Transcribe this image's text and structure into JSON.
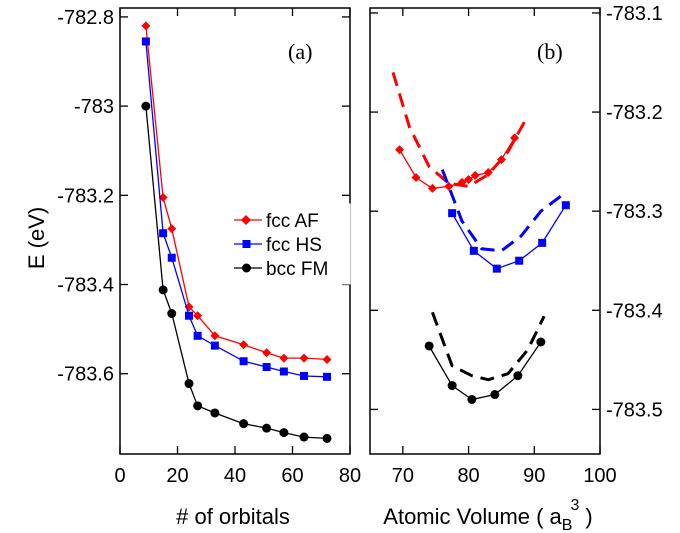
{
  "chart_data": [
    {
      "type": "line",
      "panel_label": "(a)",
      "xlabel": "# of orbitals",
      "ylabel": "E (eV)",
      "xlim": [
        0,
        80
      ],
      "ylim": [
        -783.78,
        -782.78
      ],
      "xticks": [
        0,
        20,
        40,
        60,
        80
      ],
      "yticks": [
        -782.8,
        -783,
        -783.2,
        -783.4,
        -783.6
      ],
      "ytick_labels": [
        "-782.8",
        "-783",
        "-783.2",
        "-783.4",
        "-783.6"
      ],
      "legend_position": "center-right",
      "series": [
        {
          "name": "fcc AF",
          "color": "#ff0000",
          "marker": "diamond",
          "x": [
            9,
            15,
            18,
            24,
            27,
            33,
            43,
            51,
            57,
            64,
            72
          ],
          "y": [
            -782.82,
            -783.205,
            -783.275,
            -783.45,
            -783.47,
            -783.515,
            -783.535,
            -783.553,
            -783.565,
            -783.565,
            -783.568
          ]
        },
        {
          "name": "fcc HS",
          "color": "#0000ff",
          "marker": "square",
          "x": [
            9,
            15,
            18,
            24,
            27,
            33,
            43,
            51,
            57,
            64,
            72
          ],
          "y": [
            -782.855,
            -783.285,
            -783.34,
            -783.47,
            -783.515,
            -783.537,
            -783.572,
            -783.585,
            -783.595,
            -783.605,
            -783.607
          ]
        },
        {
          "name": "bcc FM",
          "color": "#000000",
          "marker": "circle",
          "x": [
            9,
            15,
            18,
            24,
            27,
            33,
            43,
            51,
            57,
            64,
            72
          ],
          "y": [
            -783.0,
            -783.412,
            -783.465,
            -783.622,
            -783.672,
            -783.688,
            -783.712,
            -783.722,
            -783.732,
            -783.742,
            -783.745
          ]
        }
      ]
    },
    {
      "type": "line",
      "panel_label": "(b)",
      "xlabel": "Atomic Volume ( a",
      "xlabel_sub": "B",
      "xlabel_sup": "3",
      "xlabel_end": ")",
      "xlim": [
        65,
        100
      ],
      "ylim": [
        -783.545,
        -783.095
      ],
      "xticks": [
        70,
        80,
        90,
        100
      ],
      "yticks": [
        -783.1,
        -783.2,
        -783.3,
        -783.4,
        -783.5
      ],
      "ytick_labels": [
        "-783.1",
        "-783.2",
        "-783.3",
        "-783.4",
        "-783.5"
      ],
      "yaxis_side": "right",
      "series": [
        {
          "color": "#ff0000",
          "style": "solid",
          "marker": "diamond",
          "x": [
            69.5,
            72,
            74.5,
            77,
            79,
            80,
            81,
            83,
            85,
            87
          ],
          "y": [
            -783.238,
            -783.266,
            -783.277,
            -783.275,
            -783.271,
            -783.268,
            -783.264,
            -783.261,
            -783.248,
            -783.226
          ]
        },
        {
          "color": "#ff0000",
          "style": "dashed",
          "x": [
            68.5,
            71,
            74,
            77,
            80,
            83,
            86,
            88.5
          ],
          "y": [
            -783.16,
            -783.215,
            -783.255,
            -783.272,
            -783.275,
            -783.263,
            -783.24,
            -783.21
          ]
        },
        {
          "color": "#0000ff",
          "style": "solid",
          "marker": "square",
          "x": [
            77.5,
            80.8,
            84.3,
            87.7,
            91.2,
            94.8
          ],
          "y": [
            -783.302,
            -783.34,
            -783.358,
            -783.35,
            -783.332,
            -783.294
          ]
        },
        {
          "color": "#0000ff",
          "style": "dashed",
          "x": [
            76,
            79,
            82,
            85,
            88,
            91,
            94
          ],
          "y": [
            -783.258,
            -783.31,
            -783.338,
            -783.34,
            -783.325,
            -783.3,
            -783.285
          ]
        },
        {
          "color": "#000000",
          "style": "solid",
          "marker": "circle",
          "x": [
            74,
            77.5,
            80.5,
            84,
            87.5,
            91
          ],
          "y": [
            -783.436,
            -783.476,
            -783.49,
            -783.485,
            -783.466,
            -783.432
          ]
        },
        {
          "color": "#000000",
          "style": "dashed",
          "x": [
            74.5,
            77.5,
            80.5,
            83,
            86,
            89,
            91.5
          ],
          "y": [
            -783.402,
            -783.456,
            -783.466,
            -783.47,
            -783.464,
            -783.44,
            -783.406
          ]
        }
      ]
    }
  ]
}
